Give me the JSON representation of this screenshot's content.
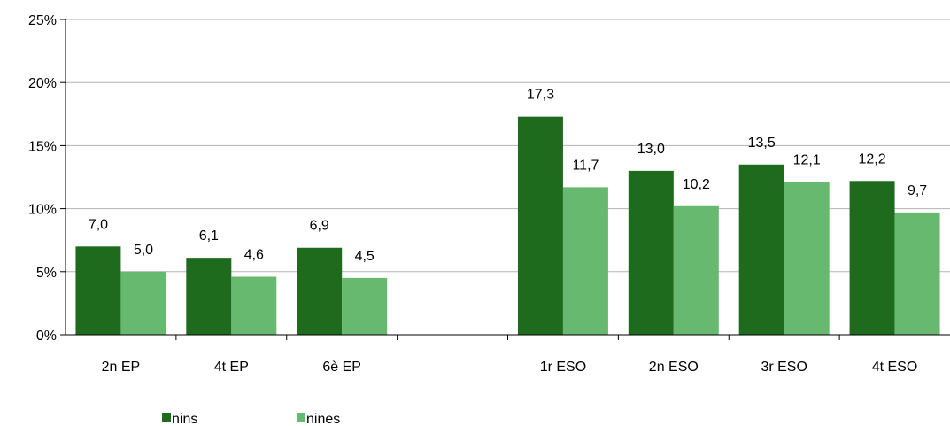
{
  "chart_data": {
    "type": "bar",
    "categories": [
      "2n EP",
      "4t EP",
      "6è EP",
      "",
      "1r ESO",
      "2n ESO",
      "3r ESO",
      "4t ESO"
    ],
    "series": [
      {
        "name": "nins",
        "color": "#1e6b1e",
        "values": [
          7.0,
          6.1,
          6.9,
          null,
          17.3,
          13.0,
          13.5,
          12.2
        ]
      },
      {
        "name": "nines",
        "color": "#66b96e",
        "values": [
          5.0,
          4.6,
          4.5,
          null,
          11.7,
          10.2,
          12.1,
          9.7
        ]
      }
    ],
    "data_labels": [
      [
        "7,0",
        "6,1",
        "6,9",
        "",
        "17,3",
        "13,0",
        "13,5",
        "12,2"
      ],
      [
        "5,0",
        "4,6",
        "4,5",
        "",
        "11,7",
        "10,2",
        "12,1",
        "9,7"
      ]
    ],
    "y_ticks": [
      "0%",
      "5%",
      "10%",
      "15%",
      "20%",
      "25%"
    ],
    "ylim": [
      0,
      25
    ],
    "grid": true,
    "legend_position": "bottom-left",
    "title": "",
    "xlabel": "",
    "ylabel": ""
  }
}
